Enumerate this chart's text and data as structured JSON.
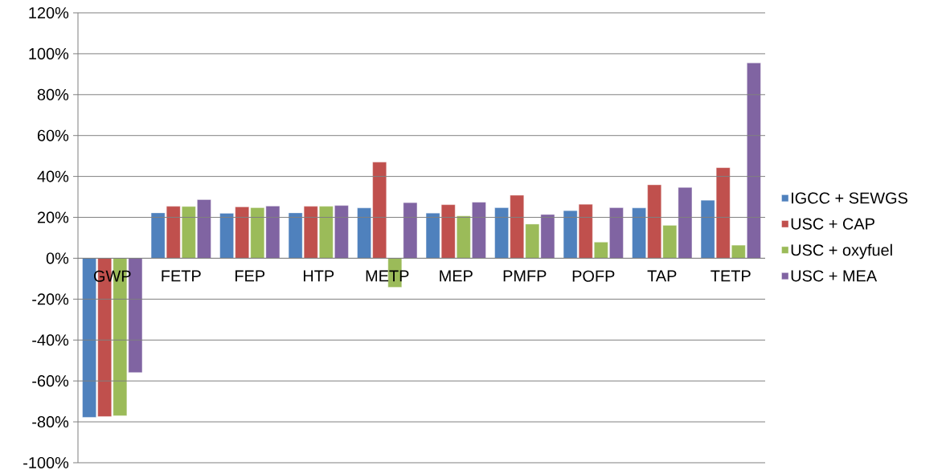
{
  "chart_data": {
    "type": "bar",
    "categories": [
      "GWP",
      "FETP",
      "FEP",
      "HTP",
      "METP",
      "MEP",
      "PMFP",
      "POFP",
      "TAP",
      "TETP"
    ],
    "series": [
      {
        "name": "IGCC + SEWGS",
        "color": "#4f81bd",
        "values": [
          -77.8,
          22.2,
          22.0,
          22.2,
          24.6,
          22.1,
          24.7,
          23.3,
          24.6,
          28.4
        ]
      },
      {
        "name": "USC + CAP",
        "color": "#c0504d",
        "values": [
          -77.4,
          25.4,
          25.1,
          25.4,
          47.0,
          26.2,
          30.8,
          26.4,
          35.9,
          44.3
        ]
      },
      {
        "name": "USC + oxyfuel",
        "color": "#9bbb59",
        "values": [
          -77.0,
          25.3,
          24.7,
          25.4,
          -14.2,
          20.7,
          16.7,
          7.9,
          16.1,
          6.4
        ]
      },
      {
        "name": "USC + MEA",
        "color": "#8064a2",
        "values": [
          -55.9,
          28.7,
          25.5,
          25.8,
          27.2,
          27.4,
          21.4,
          24.7,
          34.6,
          95.5
        ]
      }
    ],
    "ylim": [
      -100,
      120
    ],
    "yticks": [
      {
        "value": -100,
        "label": "-100%"
      },
      {
        "value": -80,
        "label": "-80%"
      },
      {
        "value": -60,
        "label": "-60%"
      },
      {
        "value": -40,
        "label": "-40%"
      },
      {
        "value": -20,
        "label": "-20%"
      },
      {
        "value": 0,
        "label": "0%"
      },
      {
        "value": 20,
        "label": "20%"
      },
      {
        "value": 40,
        "label": "40%"
      },
      {
        "value": 60,
        "label": "60%"
      },
      {
        "value": 80,
        "label": "80%"
      },
      {
        "value": 100,
        "label": "100%"
      },
      {
        "value": 120,
        "label": "120%"
      }
    ],
    "grid": "y",
    "legend": "right"
  }
}
